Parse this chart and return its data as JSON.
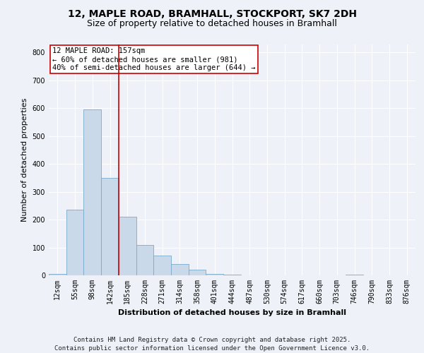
{
  "title_line1": "12, MAPLE ROAD, BRAMHALL, STOCKPORT, SK7 2DH",
  "title_line2": "Size of property relative to detached houses in Bramhall",
  "xlabel": "Distribution of detached houses by size in Bramhall",
  "ylabel": "Number of detached properties",
  "bar_color": "#c9d9ea",
  "bar_edge_color": "#7aaac8",
  "categories": [
    "12sqm",
    "55sqm",
    "98sqm",
    "142sqm",
    "185sqm",
    "228sqm",
    "271sqm",
    "314sqm",
    "358sqm",
    "401sqm",
    "444sqm",
    "487sqm",
    "530sqm",
    "574sqm",
    "617sqm",
    "660sqm",
    "703sqm",
    "746sqm",
    "790sqm",
    "833sqm",
    "876sqm"
  ],
  "values": [
    5,
    235,
    595,
    350,
    210,
    110,
    70,
    40,
    20,
    5,
    3,
    0,
    0,
    0,
    0,
    0,
    0,
    3,
    0,
    0,
    0
  ],
  "ylim": [
    0,
    830
  ],
  "yticks": [
    0,
    100,
    200,
    300,
    400,
    500,
    600,
    700,
    800
  ],
  "vline_x": 3.5,
  "vline_color": "#cc0000",
  "annotation_text": "12 MAPLE ROAD: 157sqm\n← 60% of detached houses are smaller (981)\n40% of semi-detached houses are larger (644) →",
  "footer_text": "Contains HM Land Registry data © Crown copyright and database right 2025.\nContains public sector information licensed under the Open Government Licence v3.0.",
  "background_color": "#eef2f8",
  "plot_background": "#eef2f8",
  "grid_color": "#ffffff",
  "title_fontsize": 10,
  "subtitle_fontsize": 9,
  "axis_label_fontsize": 8,
  "ylabel_fontsize": 8,
  "tick_fontsize": 7,
  "annotation_fontsize": 7.5,
  "footer_fontsize": 6.5
}
